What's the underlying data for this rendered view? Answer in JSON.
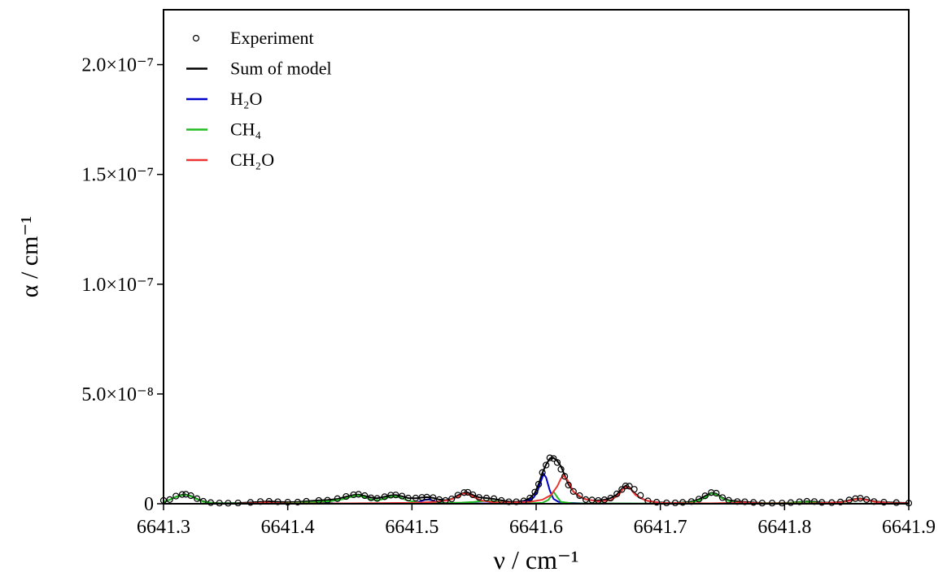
{
  "chart_data": {
    "type": "line",
    "xlabel": "ν / cm⁻¹",
    "ylabel": "α / cm⁻¹",
    "xlim": [
      6641.3,
      6641.9
    ],
    "xticks": [
      6641.3,
      6641.4,
      6641.5,
      6641.6,
      6641.7,
      6641.8,
      6641.9
    ],
    "ylim": [
      0,
      2.25e-07
    ],
    "yticks": [
      0,
      {
        "value": 5e-08,
        "label": "5.0×10⁻⁸"
      },
      {
        "value": 1e-07,
        "label": "1.0×10⁻⁷"
      },
      {
        "value": 1.5e-07,
        "label": "1.5×10⁻⁷"
      },
      {
        "value": 2e-07,
        "label": "2.0×10⁻⁷"
      }
    ],
    "legend": "upper left",
    "x": [
      6641.3,
      6641.305,
      6641.31,
      6641.315,
      6641.318,
      6641.322,
      6641.327,
      6641.332,
      6641.338,
      6641.345,
      6641.352,
      6641.36,
      6641.37,
      6641.378,
      6641.385,
      6641.392,
      6641.4,
      6641.408,
      6641.415,
      6641.425,
      6641.432,
      6641.44,
      6641.447,
      6641.453,
      6641.457,
      6641.462,
      6641.467,
      6641.472,
      6641.478,
      6641.483,
      6641.487,
      6641.492,
      6641.497,
      6641.503,
      6641.508,
      6641.512,
      6641.517,
      6641.522,
      6641.527,
      6641.532,
      6641.537,
      6641.542,
      6641.545,
      6641.549,
      6641.554,
      6641.56,
      6641.566,
      6641.572,
      6641.578,
      6641.584,
      6641.59,
      6641.595,
      6641.599,
      6641.602,
      6641.605,
      6641.608,
      6641.611,
      6641.614,
      6641.617,
      6641.62,
      6641.623,
      6641.626,
      6641.63,
      6641.635,
      6641.64,
      6641.645,
      6641.65,
      6641.655,
      6641.66,
      6641.665,
      6641.669,
      6641.672,
      6641.675,
      6641.679,
      6641.684,
      6641.69,
      6641.697,
      6641.705,
      6641.712,
      6641.718,
      6641.725,
      6641.731,
      6641.736,
      6641.741,
      6641.745,
      6641.75,
      6641.755,
      6641.762,
      6641.768,
      6641.775,
      6641.782,
      6641.79,
      6641.798,
      6641.805,
      6641.812,
      6641.818,
      6641.824,
      6641.83,
      6641.838,
      6641.845,
      6641.852,
      6641.857,
      6641.861,
      6641.866,
      6641.872,
      6641.88,
      6641.89,
      6641.9
    ],
    "series": [
      {
        "name": "Experiment",
        "style": "markers",
        "color": "#000000",
        "values": [
          1.5e-09,
          1.9e-09,
          3.5e-09,
          4.2e-09,
          4.3e-09,
          3.7e-09,
          2.3e-09,
          1.1e-09,
          5e-10,
          3e-10,
          2.5e-10,
          3.5e-10,
          6e-10,
          1e-09,
          1.1e-09,
          9e-10,
          7e-10,
          7.5e-10,
          1.1e-09,
          1.5e-09,
          1.6e-09,
          2.3e-09,
          3.3e-09,
          4.1e-09,
          4.3e-09,
          3.7e-09,
          2.7e-09,
          2.4e-09,
          3.2e-09,
          3.9e-09,
          4e-09,
          3.5e-09,
          2.6e-09,
          2.6e-09,
          2.9e-09,
          3e-09,
          2.8e-09,
          1.9e-09,
          1.5e-09,
          2.2e-09,
          3.9e-09,
          5.1e-09,
          5.2e-09,
          4.1e-09,
          2.9e-09,
          2.6e-09,
          2.3e-09,
          1.5e-09,
          9e-10,
          9e-10,
          1.3e-09,
          2.6e-09,
          5.3e-09,
          8.9e-09,
          1.42e-08,
          1.76e-08,
          2.09e-08,
          2.06e-08,
          1.88e-08,
          1.57e-08,
          1.25e-08,
          8.5e-09,
          5.6e-09,
          3.7e-09,
          1.9e-09,
          1.7e-09,
          1.5e-09,
          1.8e-09,
          2.6e-09,
          4.5e-09,
          6.5e-09,
          8.1e-09,
          8e-09,
          6.6e-09,
          3.8e-09,
          1.3e-09,
          7e-10,
          4e-10,
          4e-10,
          6e-10,
          1e-09,
          2.1e-09,
          3.6e-09,
          5.1e-09,
          4.8e-09,
          2.8e-09,
          1.6e-09,
          1e-09,
          9e-10,
          6e-10,
          3e-10,
          3e-10,
          3e-10,
          5e-10,
          9e-10,
          1.1e-09,
          1e-09,
          6e-10,
          5e-10,
          8e-10,
          1.7e-09,
          2.3e-09,
          2.5e-09,
          1.9e-09,
          1e-09,
          7e-10,
          5e-10,
          3e-10
        ]
      },
      {
        "name": "Sum of model",
        "style": "line",
        "color": "#000000",
        "values": [
          8e-10,
          1.8e-09,
          3.2e-09,
          4.1e-09,
          4.2e-09,
          3.6e-09,
          2.2e-09,
          1.1e-09,
          5e-10,
          3e-10,
          2.5e-10,
          3.5e-10,
          6e-10,
          9e-10,
          1.1e-09,
          9e-10,
          7e-10,
          8e-10,
          1.1e-09,
          1.5e-09,
          1.7e-09,
          2.2e-09,
          3.2e-09,
          4e-09,
          4.2e-09,
          3.6e-09,
          2.8e-09,
          2.5e-09,
          3.2e-09,
          3.8e-09,
          4e-09,
          3.4e-09,
          2.6e-09,
          2.5e-09,
          2.8e-09,
          3e-09,
          2.7e-09,
          1.9e-09,
          1.6e-09,
          2.2e-09,
          3.8e-09,
          5e-09,
          5.1e-09,
          4e-09,
          2.9e-09,
          2.6e-09,
          2.2e-09,
          1.5e-09,
          1e-09,
          9e-10,
          1.3e-09,
          2.5e-09,
          5e-09,
          9e-09,
          1.4e-08,
          1.78e-08,
          2.06e-08,
          2.09e-08,
          1.95e-08,
          1.7e-08,
          1.3e-08,
          8.8e-09,
          5.5e-09,
          3.2e-09,
          2e-09,
          1.6e-09,
          1.5e-09,
          1.8e-09,
          2.6e-09,
          4.2e-09,
          6.8e-09,
          8.2e-09,
          7.6e-09,
          5e-09,
          2.6e-09,
          1.3e-09,
          7e-10,
          4.5e-10,
          4e-10,
          6e-10,
          1e-09,
          2e-09,
          3.5e-09,
          5e-09,
          4.6e-09,
          2.7e-09,
          1.6e-09,
          1.1e-09,
          9e-10,
          6e-10,
          3.5e-10,
          3e-10,
          3.5e-10,
          5e-10,
          8.5e-10,
          1.1e-09,
          9.5e-10,
          6e-10,
          5e-10,
          8e-10,
          1.6e-09,
          2.2e-09,
          2.4e-09,
          1.9e-09,
          1.1e-09,
          7e-10,
          5e-10,
          3.5e-10
        ]
      },
      {
        "name": "H₂O",
        "style": "line",
        "color": "#0000cc",
        "x": [
          6641.3,
          6641.42,
          6641.426,
          6641.43,
          6641.434,
          6641.44,
          6641.455,
          6641.5,
          6641.506,
          6641.51,
          6641.513,
          6641.516,
          6641.52,
          6641.526,
          6641.54,
          6641.57,
          6641.585,
          6641.593,
          6641.598,
          6641.601,
          6641.604,
          6641.606,
          6641.608,
          6641.611,
          6641.614,
          6641.618,
          6641.625,
          6641.64,
          6641.68,
          6641.9
        ],
        "values": [
          0,
          5e-11,
          3e-10,
          6e-10,
          3.5e-10,
          1e-10,
          5e-11,
          3e-10,
          1e-09,
          1.7e-09,
          2e-09,
          1.6e-09,
          8e-10,
          3e-10,
          1e-10,
          2e-10,
          5e-10,
          1.2e-09,
          2.8e-09,
          5.5e-09,
          1.05e-08,
          1.35e-08,
          1.2e-08,
          6e-09,
          2.2e-09,
          9e-10,
          4e-10,
          1.5e-10,
          5e-11,
          0
        ]
      },
      {
        "name": "CH₄",
        "style": "line",
        "color": "#22bb22",
        "x": [
          6641.3,
          6641.305,
          6641.31,
          6641.315,
          6641.318,
          6641.322,
          6641.327,
          6641.332,
          6641.34,
          6641.355,
          6641.38,
          6641.4,
          6641.42,
          6641.435,
          6641.445,
          6641.451,
          6641.456,
          6641.461,
          6641.467,
          6641.473,
          6641.479,
          6641.485,
          6641.49,
          6641.497,
          6641.505,
          6641.52,
          6641.54,
          6641.55,
          6641.557,
          6641.562,
          6641.567,
          6641.575,
          6641.59,
          6641.605,
          6641.61,
          6641.614,
          6641.617,
          6641.62,
          6641.63,
          6641.7,
          6641.725,
          6641.733,
          6641.738,
          6641.741,
          6641.745,
          6641.75,
          6641.757,
          6641.77,
          6641.8,
          6641.81,
          6641.818,
          6641.825,
          6641.835,
          6641.86,
          6641.9
        ],
        "values": [
          8e-10,
          1.8e-09,
          3.1e-09,
          3.9e-09,
          4e-09,
          3.4e-09,
          2e-09,
          9e-10,
          3e-10,
          1e-10,
          1.5e-10,
          3e-10,
          7e-10,
          1.2e-09,
          2.2e-09,
          3.2e-09,
          3.8e-09,
          3.2e-09,
          1.9e-09,
          1.6e-09,
          2.6e-09,
          3.5e-09,
          2.9e-09,
          1.4e-09,
          6e-10,
          3e-10,
          5e-10,
          8e-10,
          1.2e-09,
          1.4e-09,
          1.1e-09,
          4e-10,
          1.5e-10,
          4e-10,
          1.8e-09,
          5.5e-09,
          3e-09,
          8e-10,
          1.5e-10,
          1e-10,
          6e-10,
          1.8e-09,
          3.4e-09,
          4.7e-09,
          4.2e-09,
          2.4e-09,
          8e-10,
          2e-10,
          3e-10,
          6e-10,
          9e-10,
          6e-10,
          2e-10,
          5e-11,
          0
        ]
      },
      {
        "name": "CH₂O",
        "style": "line",
        "color": "#ee3333",
        "x": [
          6641.3,
          6641.36,
          6641.375,
          6641.382,
          6641.386,
          6641.392,
          6641.4,
          6641.45,
          6641.5,
          6641.52,
          6641.53,
          6641.537,
          6641.541,
          6641.544,
          6641.548,
          6641.555,
          6641.565,
          6641.58,
          6641.595,
          6641.605,
          6641.612,
          6641.617,
          6641.62,
          6641.622,
          6641.625,
          6641.63,
          6641.638,
          6641.65,
          6641.66,
          6641.666,
          6641.67,
          6641.673,
          6641.676,
          6641.68,
          6641.688,
          6641.7,
          6641.74,
          6641.76,
          6641.765,
          6641.77,
          6641.78,
          6641.82,
          6641.845,
          6641.853,
          6641.858,
          6641.861,
          6641.866,
          6641.873,
          6641.885,
          6641.9
        ],
        "values": [
          0,
          5e-11,
          3e-10,
          6e-10,
          4e-10,
          3e-10,
          1.5e-10,
          2e-10,
          4e-10,
          9e-10,
          1.6e-09,
          3.2e-09,
          4.5e-09,
          4.7e-09,
          3.6e-09,
          1.6e-09,
          7e-10,
          5e-10,
          9e-10,
          1.8e-09,
          4e-09,
          8e-09,
          1.15e-08,
          1.28e-08,
          1.1e-08,
          5.5e-09,
          2.3e-09,
          1e-09,
          1.6e-09,
          3.8e-09,
          6.8e-09,
          7.8e-09,
          6.8e-09,
          4e-09,
          1.5e-09,
          4e-10,
          2e-10,
          4e-10,
          7e-10,
          5e-10,
          1.5e-10,
          2e-10,
          6e-10,
          1.4e-09,
          2.1e-09,
          2.2e-09,
          1.7e-09,
          8e-10,
          3.5e-10,
          2e-10
        ]
      }
    ]
  }
}
